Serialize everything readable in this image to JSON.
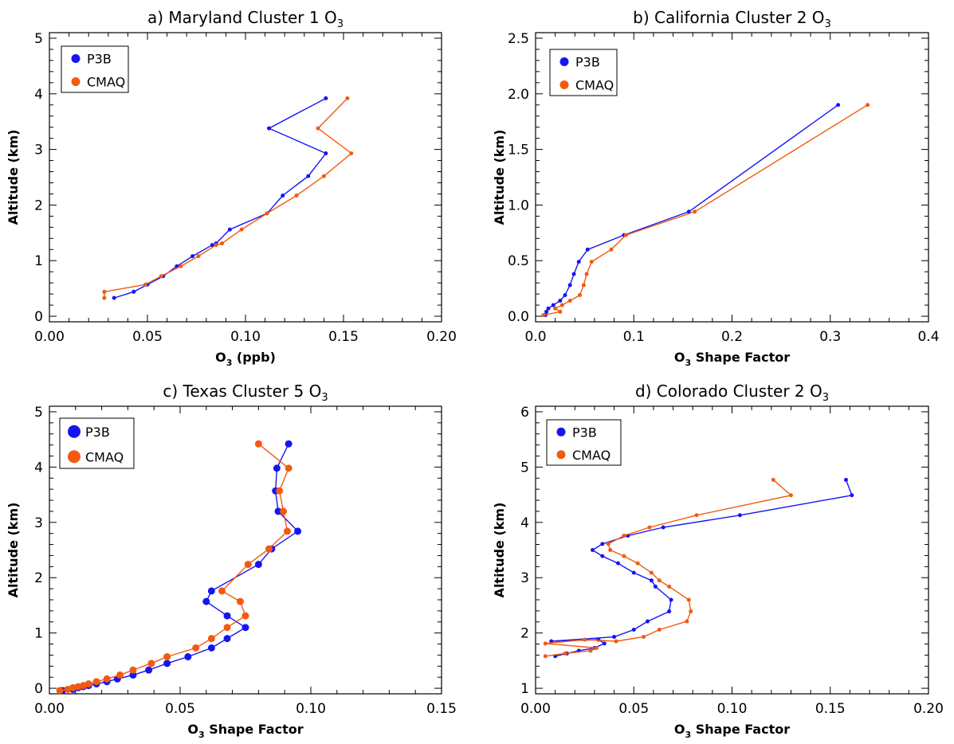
{
  "chart_data": [
    {
      "type": "line",
      "title": "a) Maryland Cluster 1 O",
      "title_sub": "3",
      "xlabel": "O",
      "xlabel_sub": "3",
      "xlabel_rest": " (ppb)",
      "ylabel": "Altitude (km)",
      "xlim": [
        0.0,
        0.2
      ],
      "ylim": [
        -0.1,
        5.1
      ],
      "x_ticks": [
        0.0,
        0.05,
        0.1,
        0.15,
        0.2
      ],
      "x_tick_labels": [
        "0.00",
        "0.05",
        "0.10",
        "0.15",
        "0.20"
      ],
      "y_ticks": [
        0,
        1,
        2,
        3,
        4,
        5
      ],
      "y_tick_labels": [
        "0",
        "1",
        "2",
        "3",
        "4",
        "5"
      ],
      "legend_position": "top-left",
      "legend_marker": "small",
      "marker_size": 2.5,
      "series": [
        {
          "name": "P3B",
          "color": "#1515f0",
          "x": [
            0.141,
            0.112,
            0.141,
            0.132,
            0.119,
            0.111,
            0.092,
            0.085,
            0.083,
            0.073,
            0.065,
            0.058,
            0.05,
            0.043,
            0.033
          ],
          "y": [
            3.92,
            3.38,
            2.93,
            2.52,
            2.17,
            1.85,
            1.56,
            1.31,
            1.28,
            1.08,
            0.9,
            0.72,
            0.57,
            0.44,
            0.33
          ]
        },
        {
          "name": "CMAQ",
          "color": "#f25a0f",
          "x": [
            0.152,
            0.137,
            0.154,
            0.14,
            0.126,
            0.111,
            0.098,
            0.088,
            0.085,
            0.076,
            0.067,
            0.057,
            0.049,
            0.028,
            0.028
          ],
          "y": [
            3.92,
            3.38,
            2.93,
            2.52,
            2.17,
            1.85,
            1.56,
            1.31,
            1.28,
            1.08,
            0.9,
            0.72,
            0.57,
            0.44,
            0.33
          ]
        }
      ]
    },
    {
      "type": "line",
      "title": "b) California Cluster 2 O",
      "title_sub": "3",
      "xlabel": "O",
      "xlabel_sub": "3",
      "xlabel_rest": " Shape Factor",
      "ylabel": "Altitude (km)",
      "xlim": [
        0.0,
        0.4
      ],
      "ylim": [
        -0.05,
        2.55
      ],
      "x_ticks": [
        0.0,
        0.1,
        0.2,
        0.3,
        0.4
      ],
      "x_tick_labels": [
        "0.0",
        "0.1",
        "0.2",
        "0.3",
        "0.4"
      ],
      "y_ticks": [
        0.0,
        0.5,
        1.0,
        1.5,
        2.0,
        2.5
      ],
      "y_tick_labels": [
        "0.0",
        "0.5",
        "1.0",
        "1.5",
        "2.0",
        "2.5"
      ],
      "legend_position": "top-left",
      "legend_marker": "small",
      "marker_size": 2.5,
      "series": [
        {
          "name": "P3B",
          "color": "#1515f0",
          "x": [
            0.308,
            0.156,
            0.09,
            0.053,
            0.044,
            0.039,
            0.035,
            0.03,
            0.025,
            0.018,
            0.013,
            0.011,
            0.01
          ],
          "y": [
            1.9,
            0.94,
            0.73,
            0.6,
            0.49,
            0.38,
            0.28,
            0.19,
            0.14,
            0.1,
            0.07,
            0.04,
            0.01
          ]
        },
        {
          "name": "CMAQ",
          "color": "#f25a0f",
          "x": [
            0.338,
            0.162,
            0.092,
            0.077,
            0.057,
            0.052,
            0.049,
            0.045,
            0.035,
            0.027,
            0.02,
            0.025,
            0.008
          ],
          "y": [
            1.9,
            0.94,
            0.73,
            0.6,
            0.49,
            0.38,
            0.28,
            0.19,
            0.14,
            0.1,
            0.07,
            0.04,
            0.01
          ]
        }
      ]
    },
    {
      "type": "line",
      "title": "c) Texas Cluster 5 O",
      "title_sub": "3",
      "xlabel": "O",
      "xlabel_sub": "3",
      "xlabel_rest": " Shape Factor",
      "ylabel": "Altitude (km)",
      "xlim": [
        0.0,
        0.15
      ],
      "ylim": [
        -0.1,
        5.1
      ],
      "x_ticks": [
        0.0,
        0.05,
        0.1,
        0.15
      ],
      "x_tick_labels": [
        "0.00",
        "0.05",
        "0.10",
        "0.15"
      ],
      "y_ticks": [
        0,
        1,
        2,
        3,
        4,
        5
      ],
      "y_tick_labels": [
        "0",
        "1",
        "2",
        "3",
        "4",
        "5"
      ],
      "legend_position": "top-left",
      "legend_marker": "large",
      "marker_size": 4.5,
      "series": [
        {
          "name": "P3B",
          "color": "#1515f0",
          "x": [
            0.0915,
            0.087,
            0.0865,
            0.0875,
            0.095,
            0.085,
            0.08,
            0.062,
            0.06,
            0.068,
            0.075,
            0.068,
            0.062,
            0.053,
            0.045,
            0.038,
            0.032,
            0.026,
            0.022,
            0.018,
            0.015,
            0.013,
            0.011,
            0.009,
            0.005
          ],
          "y": [
            4.42,
            3.98,
            3.57,
            3.2,
            2.84,
            2.52,
            2.24,
            1.76,
            1.57,
            1.31,
            1.1,
            0.9,
            0.73,
            0.57,
            0.45,
            0.33,
            0.24,
            0.17,
            0.12,
            0.08,
            0.05,
            0.03,
            0.01,
            -0.02,
            -0.04
          ]
        },
        {
          "name": "CMAQ",
          "color": "#f25a0f",
          "x": [
            0.08,
            0.0915,
            0.088,
            0.0895,
            0.091,
            0.084,
            0.076,
            0.066,
            0.073,
            0.075,
            0.068,
            0.062,
            0.056,
            0.045,
            0.039,
            0.032,
            0.027,
            0.022,
            0.018,
            0.015,
            0.013,
            0.011,
            0.009,
            0.007,
            0.004
          ],
          "y": [
            4.42,
            3.98,
            3.57,
            3.2,
            2.84,
            2.52,
            2.24,
            1.76,
            1.57,
            1.31,
            1.1,
            0.9,
            0.73,
            0.57,
            0.45,
            0.33,
            0.24,
            0.17,
            0.12,
            0.08,
            0.05,
            0.03,
            0.01,
            -0.02,
            -0.04
          ]
        }
      ]
    },
    {
      "type": "line",
      "title": "d) Colorado Cluster 2 O",
      "title_sub": "3",
      "xlabel": "O",
      "xlabel_sub": "3",
      "xlabel_rest": " Shape Factor",
      "ylabel": "Altitude (km)",
      "xlim": [
        0.0,
        0.2
      ],
      "ylim": [
        0.9,
        6.1
      ],
      "x_ticks": [
        0.0,
        0.05,
        0.1,
        0.15,
        0.2
      ],
      "x_tick_labels": [
        "0.00",
        "0.05",
        "0.10",
        "0.15",
        "0.20"
      ],
      "y_ticks": [
        1,
        2,
        3,
        4,
        5,
        6
      ],
      "y_tick_labels": [
        "1",
        "2",
        "3",
        "4",
        "5",
        "6"
      ],
      "legend_position": "top-left",
      "legend_marker": "small",
      "marker_size": 2.5,
      "series": [
        {
          "name": "P3B",
          "color": "#1515f0",
          "x": [
            0.158,
            0.161,
            0.104,
            0.065,
            0.047,
            0.034,
            0.029,
            0.034,
            0.042,
            0.05,
            0.059,
            0.061,
            0.069,
            0.068,
            0.057,
            0.05,
            0.04,
            0.008,
            0.032,
            0.035,
            0.03,
            0.022,
            0.016,
            0.01
          ],
          "y": [
            4.77,
            4.49,
            4.13,
            3.91,
            3.76,
            3.61,
            3.5,
            3.39,
            3.26,
            3.09,
            2.95,
            2.84,
            2.6,
            2.39,
            2.21,
            2.06,
            1.93,
            1.85,
            1.88,
            1.81,
            1.73,
            1.68,
            1.63,
            1.58
          ]
        },
        {
          "name": "CMAQ",
          "color": "#f25a0f",
          "x": [
            0.121,
            0.13,
            0.082,
            0.058,
            0.045,
            0.037,
            0.038,
            0.045,
            0.052,
            0.059,
            0.063,
            0.068,
            0.078,
            0.079,
            0.077,
            0.063,
            0.055,
            0.041,
            0.025,
            0.005,
            0.031,
            0.028,
            0.015,
            0.005
          ],
          "y": [
            4.77,
            4.49,
            4.13,
            3.91,
            3.76,
            3.61,
            3.5,
            3.39,
            3.26,
            3.09,
            2.95,
            2.84,
            2.6,
            2.39,
            2.21,
            2.06,
            1.93,
            1.85,
            1.88,
            1.81,
            1.73,
            1.68,
            1.63,
            1.58
          ]
        }
      ]
    }
  ]
}
